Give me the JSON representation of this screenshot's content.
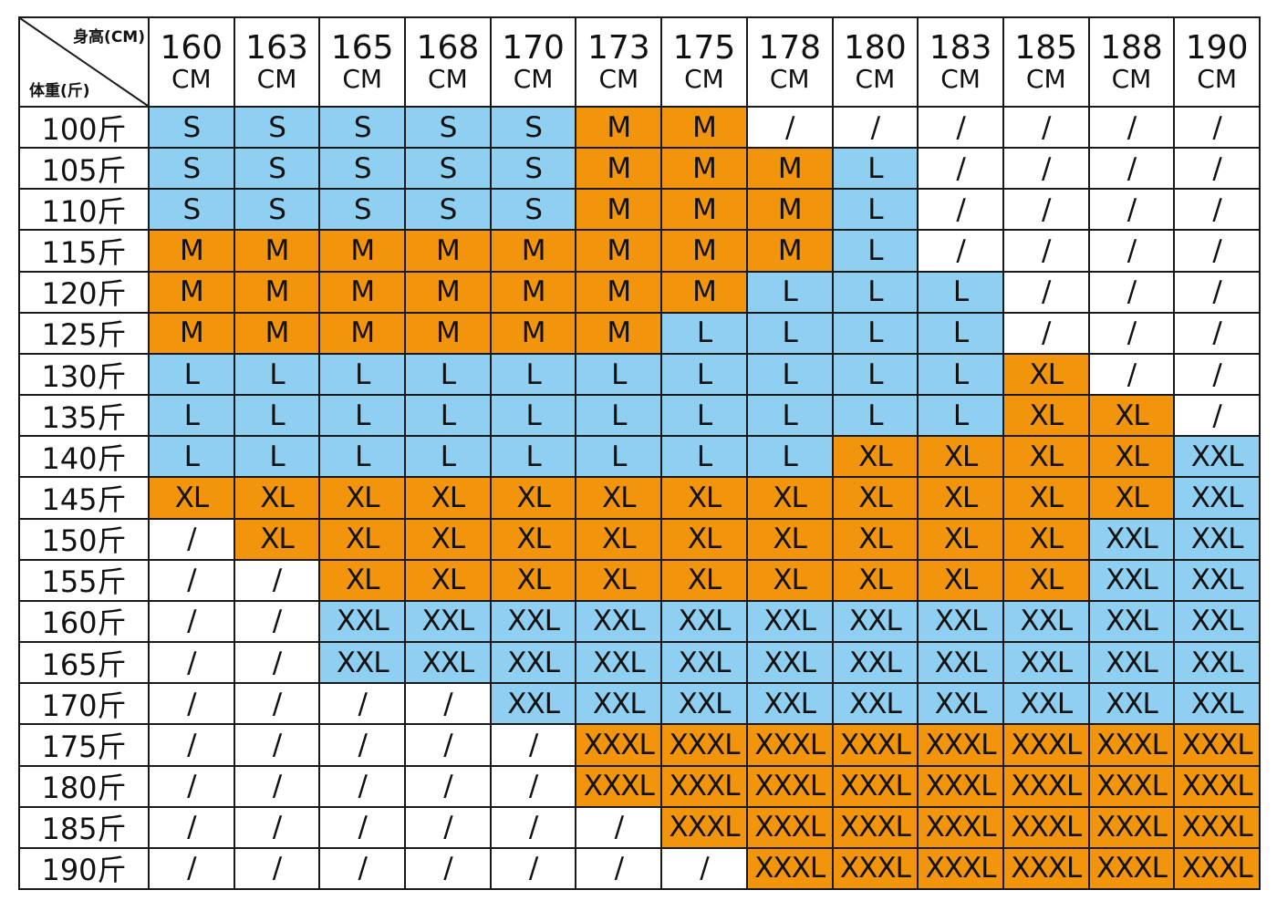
{
  "corner": {
    "top": "身高(CM)",
    "bottom": "体重(斤)"
  },
  "size_colors": {
    "S": "#8fd0f2",
    "M": "#f2940c",
    "L": "#8fd0f2",
    "XL": "#f2940c",
    "XXL": "#8fd0f2",
    "XXXL": "#f2940c",
    "/": "#ffffff"
  },
  "columns": [
    {
      "height": "160",
      "unit": "CM"
    },
    {
      "height": "163",
      "unit": "CM"
    },
    {
      "height": "165",
      "unit": "CM"
    },
    {
      "height": "168",
      "unit": "CM"
    },
    {
      "height": "170",
      "unit": "CM"
    },
    {
      "height": "173",
      "unit": "CM"
    },
    {
      "height": "175",
      "unit": "CM"
    },
    {
      "height": "178",
      "unit": "CM"
    },
    {
      "height": "180",
      "unit": "CM"
    },
    {
      "height": "183",
      "unit": "CM"
    },
    {
      "height": "185",
      "unit": "CM"
    },
    {
      "height": "188",
      "unit": "CM"
    },
    {
      "height": "190",
      "unit": "CM"
    }
  ],
  "rows": [
    {
      "weight": "100斤",
      "cells": [
        "S",
        "S",
        "S",
        "S",
        "S",
        "M",
        "M",
        "/",
        "/",
        "/",
        "/",
        "/",
        "/"
      ]
    },
    {
      "weight": "105斤",
      "cells": [
        "S",
        "S",
        "S",
        "S",
        "S",
        "M",
        "M",
        "M",
        "L",
        "/",
        "/",
        "/",
        "/"
      ]
    },
    {
      "weight": "110斤",
      "cells": [
        "S",
        "S",
        "S",
        "S",
        "S",
        "M",
        "M",
        "M",
        "L",
        "/",
        "/",
        "/",
        "/"
      ]
    },
    {
      "weight": "115斤",
      "cells": [
        "M",
        "M",
        "M",
        "M",
        "M",
        "M",
        "M",
        "M",
        "L",
        "/",
        "/",
        "/",
        "/"
      ]
    },
    {
      "weight": "120斤",
      "cells": [
        "M",
        "M",
        "M",
        "M",
        "M",
        "M",
        "M",
        "L",
        "L",
        "L",
        "/",
        "/",
        "/"
      ]
    },
    {
      "weight": "125斤",
      "cells": [
        "M",
        "M",
        "M",
        "M",
        "M",
        "M",
        "L",
        "L",
        "L",
        "L",
        "/",
        "/",
        "/"
      ]
    },
    {
      "weight": "130斤",
      "cells": [
        "L",
        "L",
        "L",
        "L",
        "L",
        "L",
        "L",
        "L",
        "L",
        "L",
        "XL",
        "/",
        "/"
      ]
    },
    {
      "weight": "135斤",
      "cells": [
        "L",
        "L",
        "L",
        "L",
        "L",
        "L",
        "L",
        "L",
        "L",
        "L",
        "XL",
        "XL",
        "/"
      ]
    },
    {
      "weight": "140斤",
      "cells": [
        "L",
        "L",
        "L",
        "L",
        "L",
        "L",
        "L",
        "L",
        "XL",
        "XL",
        "XL",
        "XL",
        "XXL"
      ]
    },
    {
      "weight": "145斤",
      "cells": [
        "XL",
        "XL",
        "XL",
        "XL",
        "XL",
        "XL",
        "XL",
        "XL",
        "XL",
        "XL",
        "XL",
        "XL",
        "XXL"
      ]
    },
    {
      "weight": "150斤",
      "cells": [
        "/",
        "XL",
        "XL",
        "XL",
        "XL",
        "XL",
        "XL",
        "XL",
        "XL",
        "XL",
        "XL",
        "XXL",
        "XXL"
      ]
    },
    {
      "weight": "155斤",
      "cells": [
        "/",
        "/",
        "XL",
        "XL",
        "XL",
        "XL",
        "XL",
        "XL",
        "XL",
        "XL",
        "XL",
        "XXL",
        "XXL"
      ]
    },
    {
      "weight": "160斤",
      "cells": [
        "/",
        "/",
        "XXL",
        "XXL",
        "XXL",
        "XXL",
        "XXL",
        "XXL",
        "XXL",
        "XXL",
        "XXL",
        "XXL",
        "XXL"
      ]
    },
    {
      "weight": "165斤",
      "cells": [
        "/",
        "/",
        "XXL",
        "XXL",
        "XXL",
        "XXL",
        "XXL",
        "XXL",
        "XXL",
        "XXL",
        "XXL",
        "XXL",
        "XXL"
      ]
    },
    {
      "weight": "170斤",
      "cells": [
        "/",
        "/",
        "/",
        "/",
        "XXL",
        "XXL",
        "XXL",
        "XXL",
        "XXL",
        "XXL",
        "XXL",
        "XXL",
        "XXL"
      ]
    },
    {
      "weight": "175斤",
      "cells": [
        "/",
        "/",
        "/",
        "/",
        "/",
        "XXXL",
        "XXXL",
        "XXXL",
        "XXXL",
        "XXXL",
        "XXXL",
        "XXXL",
        "XXXL"
      ]
    },
    {
      "weight": "180斤",
      "cells": [
        "/",
        "/",
        "/",
        "/",
        "/",
        "XXXL",
        "XXXL",
        "XXXL",
        "XXXL",
        "XXXL",
        "XXXL",
        "XXXL",
        "XXXL"
      ]
    },
    {
      "weight": "185斤",
      "cells": [
        "/",
        "/",
        "/",
        "/",
        "/",
        "/",
        "XXXL",
        "XXXL",
        "XXXL",
        "XXXL",
        "XXXL",
        "XXXL",
        "XXXL"
      ]
    },
    {
      "weight": "190斤",
      "cells": [
        "/",
        "/",
        "/",
        "/",
        "/",
        "/",
        "/",
        "XXXL",
        "XXXL",
        "XXXL",
        "XXXL",
        "XXXL",
        "XXXL"
      ]
    }
  ]
}
